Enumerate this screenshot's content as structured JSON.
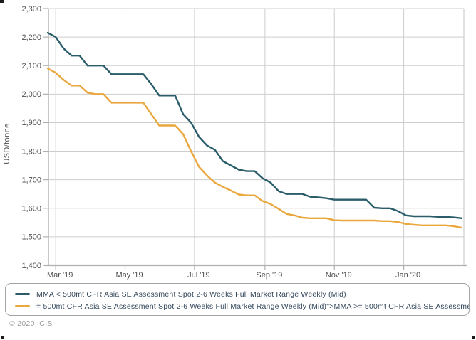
{
  "footer": {
    "copyright": "© 2020 ICIS"
  },
  "chart_data": {
    "type": "line",
    "title": "",
    "xlabel": "",
    "ylabel": "USD/tonne",
    "ylim": [
      1400,
      2300
    ],
    "y_step": 100,
    "grid": true,
    "legend_position": "bottom",
    "y_tick_labels": [
      "1,400",
      "1,500",
      "1,600",
      "1,700",
      "1,800",
      "1,900",
      "2,000",
      "2,100",
      "2,200",
      "2,300"
    ],
    "x_ticks": [
      {
        "date": "2019-03-01",
        "label": "Mar '19"
      },
      {
        "date": "2019-05-01",
        "label": "May '19"
      },
      {
        "date": "2019-07-01",
        "label": "Jul '19"
      },
      {
        "date": "2019-09-01",
        "label": "Sep '19"
      },
      {
        "date": "2019-11-01",
        "label": "Nov '19"
      },
      {
        "date": "2020-01-01",
        "label": "Jan '20"
      }
    ],
    "x": [
      "2019-02-22",
      "2019-03-01",
      "2019-03-08",
      "2019-03-15",
      "2019-03-22",
      "2019-03-29",
      "2019-04-05",
      "2019-04-12",
      "2019-04-19",
      "2019-04-26",
      "2019-05-03",
      "2019-05-10",
      "2019-05-17",
      "2019-05-24",
      "2019-05-31",
      "2019-06-07",
      "2019-06-14",
      "2019-06-21",
      "2019-06-28",
      "2019-07-05",
      "2019-07-12",
      "2019-07-19",
      "2019-07-26",
      "2019-08-02",
      "2019-08-09",
      "2019-08-16",
      "2019-08-23",
      "2019-08-30",
      "2019-09-06",
      "2019-09-13",
      "2019-09-20",
      "2019-09-27",
      "2019-10-04",
      "2019-10-11",
      "2019-10-18",
      "2019-10-25",
      "2019-11-01",
      "2019-11-08",
      "2019-11-15",
      "2019-11-22",
      "2019-11-29",
      "2019-12-06",
      "2019-12-13",
      "2019-12-20",
      "2019-12-27",
      "2020-01-03",
      "2020-01-10",
      "2020-01-17",
      "2020-01-24",
      "2020-01-31",
      "2020-02-07",
      "2020-02-14",
      "2020-02-21"
    ],
    "series": [
      {
        "name": "MMA < 500mt CFR Asia SE Assessment Spot 2-6 Weeks Full Market Range Weekly (Mid)",
        "color": "#2a5d69",
        "values": [
          2215,
          2200,
          2160,
          2135,
          2135,
          2100,
          2100,
          2100,
          2070,
          2070,
          2070,
          2070,
          2070,
          2035,
          1995,
          1995,
          1995,
          1930,
          1900,
          1850,
          1820,
          1805,
          1765,
          1750,
          1735,
          1730,
          1730,
          1705,
          1690,
          1660,
          1650,
          1650,
          1650,
          1640,
          1638,
          1635,
          1630,
          1630,
          1630,
          1630,
          1630,
          1602,
          1600,
          1600,
          1590,
          1575,
          1572,
          1572,
          1572,
          1570,
          1570,
          1568,
          1565
        ]
      },
      {
        "name": "= 500mt CFR Asia SE Assessment Spot 2-6 Weeks Full Market Range Weekly (Mid)\">MMA >= 500mt CFR Asia SE Assessme",
        "color": "#eaa73e",
        "values": [
          2090,
          2075,
          2050,
          2030,
          2030,
          2005,
          2000,
          2000,
          1970,
          1970,
          1970,
          1970,
          1970,
          1930,
          1890,
          1890,
          1890,
          1860,
          1800,
          1745,
          1715,
          1690,
          1675,
          1662,
          1648,
          1645,
          1645,
          1625,
          1615,
          1598,
          1580,
          1575,
          1567,
          1565,
          1565,
          1565,
          1558,
          1557,
          1557,
          1557,
          1557,
          1557,
          1555,
          1555,
          1552,
          1545,
          1542,
          1540,
          1540,
          1540,
          1540,
          1537,
          1532
        ]
      }
    ],
    "style": {
      "grid_color": "#cdcdcd",
      "axis_color": "#b0b0b0",
      "tick_text_color": "#4f4f4f"
    }
  }
}
